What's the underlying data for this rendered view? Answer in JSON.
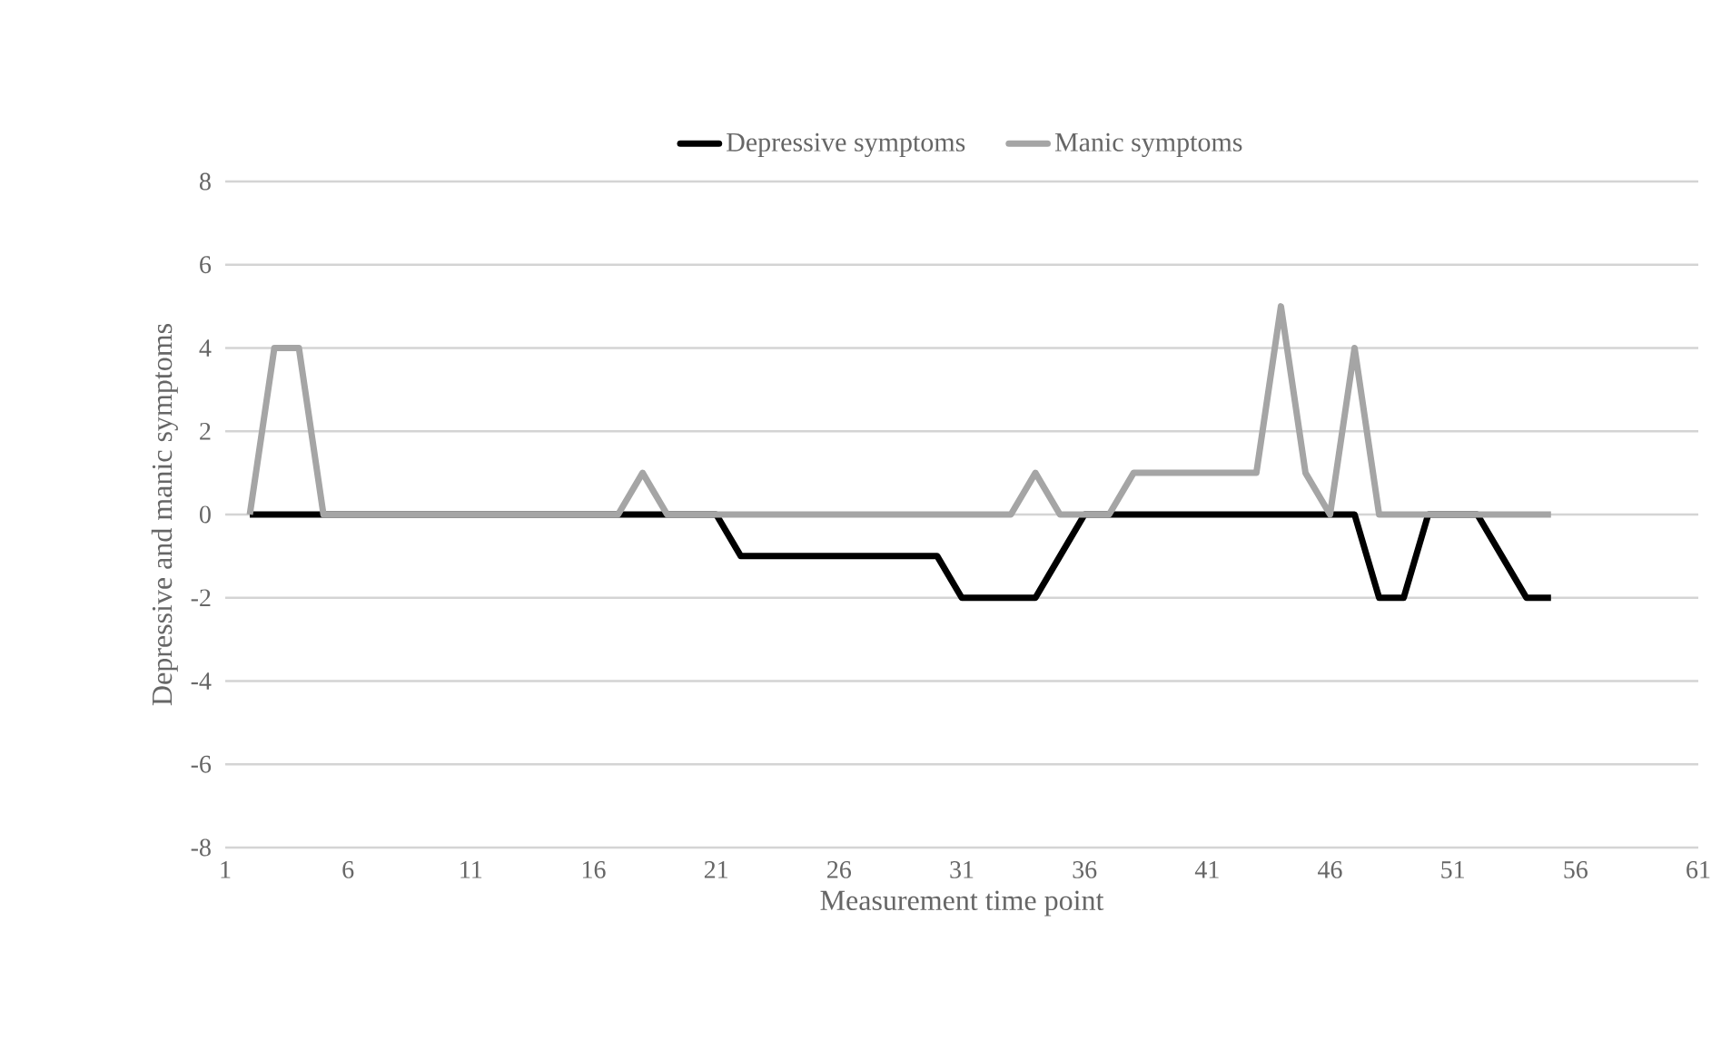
{
  "chart_data": {
    "type": "line",
    "xlabel": "Measurement time point",
    "ylabel": "Depressive and manic symptoms",
    "x": [
      2,
      3,
      4,
      5,
      6,
      7,
      8,
      9,
      10,
      11,
      12,
      13,
      14,
      15,
      16,
      17,
      18,
      19,
      20,
      21,
      22,
      23,
      24,
      25,
      26,
      27,
      28,
      29,
      30,
      31,
      32,
      33,
      34,
      35,
      36,
      37,
      38,
      39,
      40,
      41,
      42,
      43,
      44,
      45,
      46,
      47,
      48,
      49,
      50,
      51,
      52,
      53,
      54,
      55
    ],
    "series": [
      {
        "name": "Depressive symptoms",
        "color": "#000000",
        "values": [
          0,
          0,
          0,
          0,
          0,
          0,
          0,
          0,
          0,
          0,
          0,
          0,
          0,
          0,
          0,
          0,
          0,
          0,
          0,
          0,
          -1,
          -1,
          -1,
          -1,
          -1,
          -1,
          -1,
          -1,
          -1,
          -2,
          -2,
          -2,
          -2,
          -1,
          0,
          0,
          0,
          0,
          0,
          0,
          0,
          0,
          0,
          0,
          0,
          0,
          -2,
          -2,
          0,
          0,
          0,
          -1,
          -2,
          -2
        ]
      },
      {
        "name": "Manic symptoms",
        "color": "#a5a5a5",
        "values": [
          0,
          4,
          4,
          0,
          0,
          0,
          0,
          0,
          0,
          0,
          0,
          0,
          0,
          0,
          0,
          0,
          1,
          0,
          0,
          0,
          0,
          0,
          0,
          0,
          0,
          0,
          0,
          0,
          0,
          0,
          0,
          0,
          1,
          0,
          0,
          0,
          1,
          1,
          1,
          1,
          1,
          1,
          5,
          1,
          0,
          4,
          0,
          0,
          0,
          0,
          0,
          0,
          0,
          0
        ]
      }
    ],
    "xlim": [
      1,
      61
    ],
    "xticks": [
      1,
      6,
      11,
      16,
      21,
      26,
      31,
      36,
      41,
      46,
      51,
      56,
      61
    ],
    "ylim": [
      -8,
      8
    ],
    "yticks": [
      -8,
      -6,
      -4,
      -2,
      0,
      2,
      4,
      6,
      8
    ],
    "grid": "y",
    "legend": "top",
    "marker": "none",
    "line_style": "solid"
  }
}
